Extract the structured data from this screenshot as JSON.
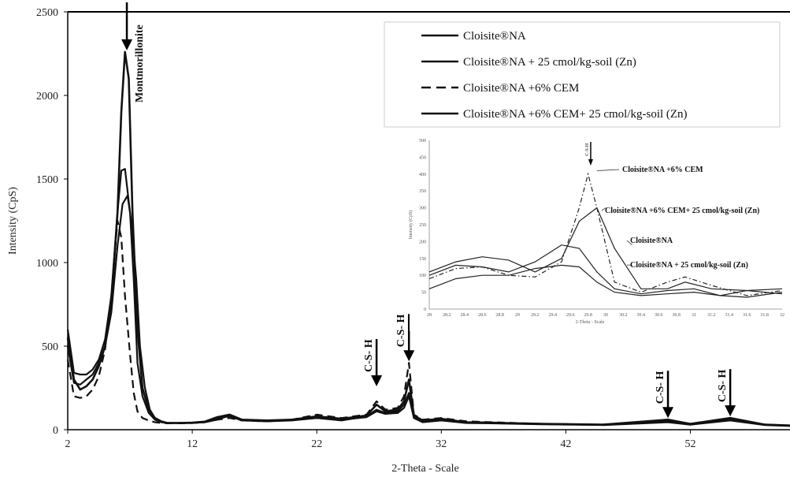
{
  "chart_data": {
    "type": "line",
    "xlabel": "2-Theta - Scale",
    "ylabel": "Intensity (CpS)",
    "xlim": [
      2,
      60
    ],
    "ylim": [
      0,
      2500
    ],
    "xticks": [
      2,
      12,
      22,
      32,
      42,
      52
    ],
    "yticks": [
      0,
      500,
      1000,
      1500,
      2000,
      2500
    ],
    "legend_position": "top-right",
    "legend": [
      {
        "label": "Cloisite®NA",
        "style": "solid"
      },
      {
        "label": "Cloisite®NA + 25 cmol/kg-soil (Zn)",
        "style": "solid"
      },
      {
        "label": "Cloisite®NA +6% CEM",
        "style": "dashed"
      },
      {
        "label": "Cloisite®NA +6% CEM+ 25 cmol/kg-soil (Zn)",
        "style": "solid"
      }
    ],
    "annotations": [
      {
        "text": "Montmorillonite",
        "x": 7.0,
        "y": 2260
      },
      {
        "text": "C-S- H",
        "x": 26.8,
        "y": 250
      },
      {
        "text": "C-S- H",
        "x": 29.4,
        "y": 400
      },
      {
        "text": "C-S- H",
        "x": 50.2,
        "y": 60
      },
      {
        "text": "C-S- H",
        "x": 55.2,
        "y": 70
      }
    ],
    "series": [
      {
        "name": "Cloisite®NA",
        "x": [
          2,
          2.5,
          3,
          3.5,
          4,
          4.5,
          5,
          5.5,
          6,
          6.3,
          6.6,
          7,
          7.3,
          7.6,
          8,
          8.5,
          9,
          9.5,
          10,
          11,
          12,
          13,
          14,
          15,
          16,
          18,
          20,
          22,
          24,
          26,
          26.8,
          27.5,
          28.5,
          29,
          29.4,
          29.8,
          30.5,
          32,
          34,
          36,
          40,
          45,
          50.2,
          52,
          55.2,
          58,
          60
        ],
        "y": [
          600,
          340,
          330,
          330,
          360,
          420,
          540,
          800,
          1300,
          1550,
          1560,
          1300,
          900,
          400,
          200,
          100,
          60,
          45,
          40,
          40,
          40,
          45,
          70,
          80,
          55,
          50,
          60,
          70,
          55,
          80,
          120,
          100,
          110,
          150,
          220,
          80,
          50,
          60,
          45,
          40,
          35,
          30,
          50,
          35,
          60,
          30,
          25
        ]
      },
      {
        "name": "Cloisite®NA + 25 cmol/kg-soil (Zn)",
        "x": [
          2,
          2.5,
          3,
          3.5,
          4,
          4.5,
          5,
          5.5,
          6,
          6.4,
          6.8,
          7.1,
          7.5,
          7.8,
          8.2,
          8.6,
          9,
          9.5,
          10,
          11,
          12,
          13,
          14,
          15,
          16,
          18,
          20,
          22,
          24,
          26,
          26.8,
          27.5,
          28.5,
          29,
          29.4,
          29.8,
          30.5,
          32,
          34,
          36,
          40,
          45,
          50.2,
          52,
          55.2,
          58,
          60
        ],
        "y": [
          500,
          280,
          270,
          300,
          330,
          400,
          500,
          700,
          1100,
          1350,
          1400,
          1250,
          900,
          500,
          250,
          120,
          70,
          50,
          40,
          40,
          40,
          45,
          60,
          85,
          60,
          50,
          55,
          70,
          60,
          75,
          110,
          95,
          100,
          130,
          200,
          70,
          45,
          55,
          40,
          38,
          32,
          28,
          45,
          30,
          55,
          28,
          22
        ]
      },
      {
        "name": "Cloisite®NA +6% CEM",
        "x": [
          2,
          2.5,
          3,
          3.5,
          4,
          4.5,
          5,
          5.5,
          6,
          6.3,
          6.6,
          7,
          7.3,
          7.6,
          8,
          8.5,
          9,
          9.5,
          10,
          11,
          12,
          13,
          14,
          15,
          16,
          18,
          20,
          22,
          24,
          26,
          26.8,
          27.5,
          28.5,
          29,
          29.4,
          29.8,
          30.5,
          32,
          34,
          36,
          40,
          45,
          50.2,
          52,
          55.2,
          58,
          60
        ],
        "y": [
          420,
          200,
          190,
          200,
          240,
          320,
          480,
          800,
          1250,
          1150,
          800,
          450,
          220,
          110,
          70,
          55,
          45,
          40,
          38,
          38,
          40,
          45,
          60,
          70,
          55,
          50,
          60,
          90,
          70,
          90,
          170,
          120,
          130,
          200,
          400,
          90,
          60,
          70,
          50,
          45,
          35,
          30,
          55,
          35,
          65,
          30,
          25
        ]
      },
      {
        "name": "Cloisite®NA +6% CEM+ 25 cmol/kg-soil (Zn)",
        "x": [
          2,
          2.5,
          3,
          3.5,
          4,
          4.5,
          5,
          5.5,
          6,
          6.3,
          6.6,
          6.9,
          7.2,
          7.6,
          8,
          8.5,
          9,
          9.5,
          10,
          11,
          12,
          13,
          14,
          15,
          16,
          18,
          20,
          22,
          24,
          26,
          26.8,
          27.5,
          28.5,
          29,
          29.4,
          29.8,
          30.5,
          32,
          34,
          36,
          40,
          45,
          50.2,
          52,
          55.2,
          58,
          60
        ],
        "y": [
          550,
          300,
          240,
          260,
          300,
          380,
          500,
          760,
          1300,
          1900,
          2260,
          2100,
          1300,
          600,
          250,
          120,
          70,
          50,
          40,
          40,
          42,
          48,
          75,
          90,
          60,
          55,
          60,
          80,
          65,
          85,
          150,
          110,
          120,
          170,
          300,
          85,
          55,
          65,
          45,
          42,
          35,
          30,
          60,
          35,
          70,
          30,
          25
        ]
      }
    ],
    "inset": {
      "xlim": [
        28,
        32
      ],
      "ylim": [
        0,
        500
      ],
      "xlabel": "2-Theta - Scale",
      "ylabel": "Intensity (CpS)",
      "xticks": [
        28,
        28.2,
        28.4,
        28.6,
        28.8,
        29,
        29.2,
        29.4,
        29.6,
        29.8,
        30,
        30.2,
        30.4,
        30.6,
        30.8,
        31,
        31.2,
        31.4,
        31.6,
        31.8,
        32
      ],
      "xtick_labels": [
        "28",
        "28.2",
        "28.4",
        "28.6",
        "28.8",
        "29",
        "29.2",
        "29.4",
        "29.6",
        "29.8",
        "30",
        "30.2",
        "30.4",
        "30.6",
        "30.8",
        "31",
        "31.2",
        "31.4",
        "31.6",
        "31.8",
        "32"
      ],
      "yticks": [
        0,
        50,
        100,
        150,
        200,
        250,
        300,
        350,
        400,
        450,
        500
      ],
      "ytick_labels": [
        "0",
        "50",
        "100",
        "150",
        "200",
        "250",
        "300",
        "350",
        "400",
        "450",
        "500"
      ],
      "peak_label": "C-S-H",
      "labels": [
        {
          "text": "Cloisite®NA +6% CEM",
          "x": 29.9,
          "y": 410
        },
        {
          "text": "Cloisite®NA +6% CEM+ 25 cmol/kg-soil (Zn)",
          "x": 30.0,
          "y": 300
        },
        {
          "text": "Cloisite®NA",
          "x": 30.3,
          "y": 190
        },
        {
          "text": "Cloisite®NA + 25 cmol/kg-soil (Zn)",
          "x": 30.3,
          "y": 130
        }
      ],
      "series": [
        {
          "name": "Cloisite®NA",
          "style": "solid",
          "x": [
            28,
            28.3,
            28.6,
            28.9,
            29.2,
            29.5,
            29.7,
            29.9,
            30.1,
            30.4,
            30.7,
            31,
            31.3,
            31.6,
            32
          ],
          "y": [
            100,
            130,
            125,
            110,
            140,
            190,
            180,
            110,
            60,
            45,
            55,
            60,
            40,
            35,
            50
          ]
        },
        {
          "name": "Cloisite®NA + 25 cmol/kg-soil (Zn)",
          "style": "solid",
          "x": [
            28,
            28.3,
            28.6,
            28.9,
            29.2,
            29.5,
            29.7,
            29.9,
            30.1,
            30.4,
            30.7,
            31,
            31.3,
            31.6,
            32
          ],
          "y": [
            60,
            90,
            100,
            100,
            120,
            130,
            125,
            80,
            50,
            40,
            45,
            50,
            40,
            55,
            45
          ]
        },
        {
          "name": "Cloisite®NA +6% CEM",
          "style": "dashdot",
          "x": [
            28,
            28.3,
            28.6,
            28.9,
            29.2,
            29.5,
            29.7,
            29.8,
            29.9,
            30.1,
            30.4,
            30.7,
            30.9,
            31.2,
            31.6,
            32
          ],
          "y": [
            90,
            120,
            125,
            100,
            95,
            140,
            300,
            400,
            300,
            80,
            50,
            80,
            95,
            70,
            40,
            55
          ]
        },
        {
          "name": "Cloisite®NA +6% CEM+ 25 cmol/kg-soil (Zn)",
          "style": "solid",
          "x": [
            28,
            28.3,
            28.6,
            28.9,
            29.2,
            29.5,
            29.7,
            29.9,
            30.1,
            30.4,
            30.7,
            30.9,
            31.2,
            31.6,
            32
          ],
          "y": [
            110,
            140,
            155,
            145,
            110,
            150,
            260,
            300,
            180,
            60,
            60,
            80,
            60,
            55,
            60
          ]
        }
      ]
    }
  }
}
